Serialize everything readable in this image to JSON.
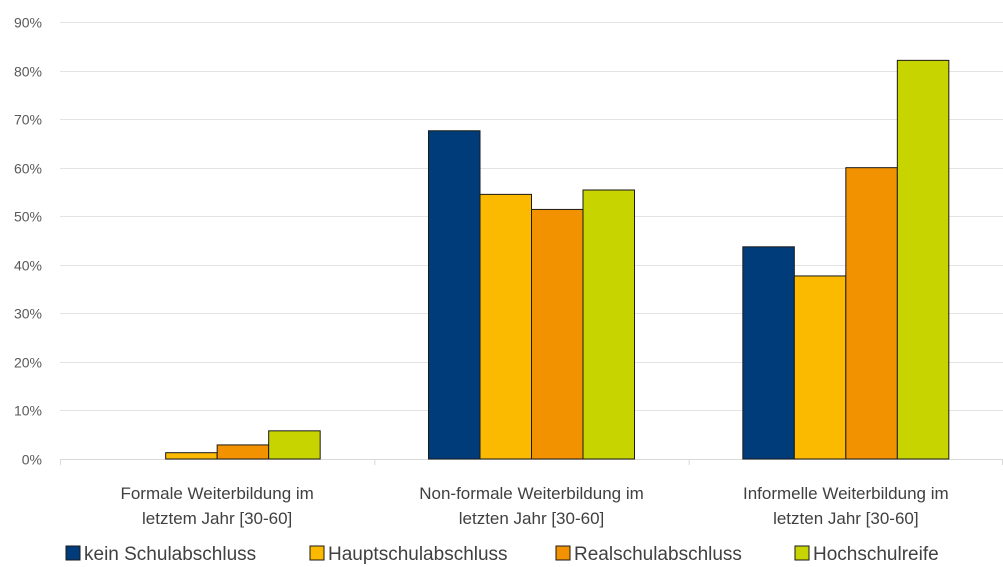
{
  "chart_data": {
    "type": "bar",
    "title": "",
    "xlabel": "",
    "ylabel": "",
    "categories": [
      [
        "Formale Weiterbildung im",
        "letztem Jahr [30-60]"
      ],
      [
        "Non-formale Weiterbildung im",
        "letzten Jahr [30-60]"
      ],
      [
        "Informelle Weiterbildung im",
        "letzten Jahr [30-60]"
      ]
    ],
    "series": [
      {
        "name": "kein Schulabschluss",
        "color": "#003b7a",
        "values": [
          0,
          67.6,
          43.7
        ]
      },
      {
        "name": "Hauptschulabschluss",
        "color": "#fbb900",
        "values": [
          1.3,
          54.5,
          37.7
        ]
      },
      {
        "name": "Realschulabschluss",
        "color": "#f39200",
        "values": [
          2.9,
          51.4,
          60.0
        ]
      },
      {
        "name": "Hochschulreife",
        "color": "#c8d400",
        "values": [
          5.8,
          55.4,
          82.1
        ]
      }
    ],
    "ylim": [
      0,
      90
    ],
    "y_ticks": [
      "0%",
      "10%",
      "20%",
      "30%",
      "40%",
      "50%",
      "60%",
      "70%",
      "80%",
      "90%"
    ],
    "grid": true,
    "legend_position": "bottom"
  }
}
